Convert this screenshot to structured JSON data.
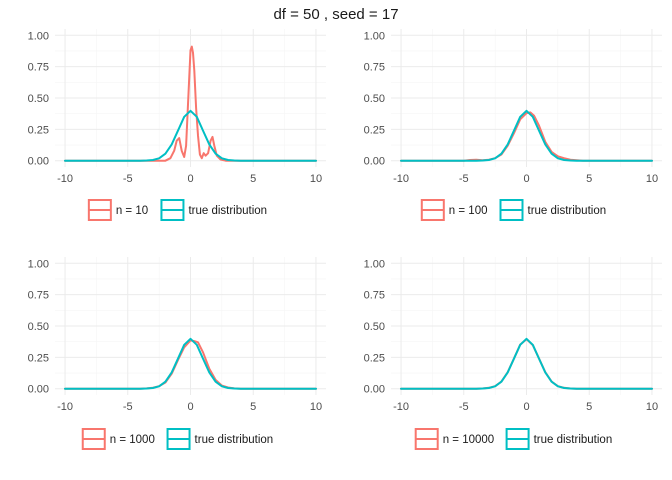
{
  "title": "df = 50 , seed = 17",
  "colors": {
    "sample": "#F8766D",
    "true": "#00BFC4"
  },
  "legend_labels": {
    "true": "true distribution",
    "p1": "n = 10",
    "p2": "n = 100",
    "p3": "n = 1000",
    "p4": "n = 10000"
  },
  "chart_data": [
    {
      "type": "line",
      "xlim": [
        -10.8,
        10.8
      ],
      "ylim": [
        -0.05,
        1.05
      ],
      "x_ticks": [
        -10,
        -5,
        0,
        5,
        10
      ],
      "y_ticks": [
        0.0,
        0.25,
        0.5,
        0.75,
        1.0
      ],
      "x_tick_labels": [
        "-10",
        "-5",
        "0",
        "5",
        "10"
      ],
      "y_tick_labels": [
        "0.00",
        "0.25",
        "0.50",
        "0.75",
        "1.00"
      ],
      "grid": true,
      "legend_position": "bottom",
      "series": [
        {
          "name": "n = 10",
          "x": [
            -10,
            -2,
            -1.6,
            -1.3,
            -1.1,
            -0.9,
            -0.7,
            -0.5,
            -0.35,
            -0.2,
            0,
            0.1,
            0.2,
            0.3,
            0.45,
            0.6,
            0.75,
            0.9,
            1.05,
            1.2,
            1.4,
            1.6,
            1.75,
            1.9,
            2.1,
            2.4,
            2.8,
            10
          ],
          "y": [
            0,
            0,
            0.02,
            0.08,
            0.16,
            0.18,
            0.08,
            0.03,
            0.12,
            0.45,
            0.88,
            0.91,
            0.86,
            0.72,
            0.42,
            0.2,
            0.05,
            0.02,
            0.06,
            0.04,
            0.06,
            0.16,
            0.19,
            0.12,
            0.04,
            0.01,
            0,
            0
          ]
        },
        {
          "name": "true distribution",
          "x": [
            -10,
            -4,
            -3.5,
            -3,
            -2.5,
            -2,
            -1.5,
            -1,
            -0.5,
            0,
            0.5,
            1,
            1.5,
            2,
            2.5,
            3,
            3.5,
            4,
            10
          ],
          "y": [
            0,
            0,
            0.002,
            0.006,
            0.019,
            0.056,
            0.13,
            0.24,
            0.35,
            0.398,
            0.35,
            0.24,
            0.13,
            0.056,
            0.019,
            0.006,
            0.002,
            0,
            0
          ]
        }
      ]
    },
    {
      "type": "line",
      "xlim": [
        -10.8,
        10.8
      ],
      "ylim": [
        -0.05,
        1.05
      ],
      "x_ticks": [
        -10,
        -5,
        0,
        5,
        10
      ],
      "y_ticks": [
        0.0,
        0.25,
        0.5,
        0.75,
        1.0
      ],
      "x_tick_labels": [
        "-10",
        "-5",
        "0",
        "5",
        "10"
      ],
      "y_tick_labels": [
        "0.00",
        "0.25",
        "0.50",
        "0.75",
        "1.00"
      ],
      "grid": true,
      "legend_position": "bottom",
      "series": [
        {
          "name": "n = 100",
          "x": [
            -10,
            -5,
            -4.5,
            -4,
            -3.5,
            -3,
            -2.5,
            -2,
            -1.5,
            -1,
            -0.5,
            0,
            0.3,
            0.6,
            1,
            1.5,
            2,
            2.5,
            3,
            3.5,
            4,
            4.5,
            10
          ],
          "y": [
            0,
            0,
            0.006,
            0.008,
            0.004,
            0.008,
            0.02,
            0.05,
            0.12,
            0.22,
            0.33,
            0.38,
            0.385,
            0.36,
            0.28,
            0.15,
            0.07,
            0.035,
            0.02,
            0.008,
            0.004,
            0,
            0
          ]
        },
        {
          "name": "true distribution",
          "x": [
            -10,
            -4,
            -3.5,
            -3,
            -2.5,
            -2,
            -1.5,
            -1,
            -0.5,
            0,
            0.5,
            1,
            1.5,
            2,
            2.5,
            3,
            3.5,
            4,
            10
          ],
          "y": [
            0,
            0,
            0.002,
            0.006,
            0.019,
            0.056,
            0.13,
            0.24,
            0.35,
            0.398,
            0.35,
            0.24,
            0.13,
            0.056,
            0.019,
            0.006,
            0.002,
            0,
            0
          ]
        }
      ]
    },
    {
      "type": "line",
      "xlim": [
        -10.8,
        10.8
      ],
      "ylim": [
        -0.05,
        1.05
      ],
      "x_ticks": [
        -10,
        -5,
        0,
        5,
        10
      ],
      "y_ticks": [
        0.0,
        0.25,
        0.5,
        0.75,
        1.0
      ],
      "x_tick_labels": [
        "-10",
        "-5",
        "0",
        "5",
        "10"
      ],
      "y_tick_labels": [
        "0.00",
        "0.25",
        "0.50",
        "0.75",
        "1.00"
      ],
      "grid": true,
      "legend_position": "bottom",
      "series": [
        {
          "name": "n = 1000",
          "x": [
            -10,
            -4,
            -3.5,
            -3,
            -2.5,
            -2,
            -1.5,
            -1,
            -0.5,
            0,
            0.3,
            0.6,
            1,
            1.5,
            2,
            2.5,
            3,
            3.5,
            4,
            10
          ],
          "y": [
            0,
            0,
            0.003,
            0.008,
            0.02,
            0.05,
            0.12,
            0.23,
            0.33,
            0.385,
            0.38,
            0.37,
            0.29,
            0.16,
            0.07,
            0.025,
            0.01,
            0.003,
            0,
            0
          ]
        },
        {
          "name": "true distribution",
          "x": [
            -10,
            -4,
            -3.5,
            -3,
            -2.5,
            -2,
            -1.5,
            -1,
            -0.5,
            0,
            0.5,
            1,
            1.5,
            2,
            2.5,
            3,
            3.5,
            4,
            10
          ],
          "y": [
            0,
            0,
            0.002,
            0.006,
            0.019,
            0.056,
            0.13,
            0.24,
            0.35,
            0.398,
            0.35,
            0.24,
            0.13,
            0.056,
            0.019,
            0.006,
            0.002,
            0,
            0
          ]
        }
      ]
    },
    {
      "type": "line",
      "xlim": [
        -10.8,
        10.8
      ],
      "ylim": [
        -0.05,
        1.05
      ],
      "x_ticks": [
        -10,
        -5,
        0,
        5,
        10
      ],
      "y_ticks": [
        0.0,
        0.25,
        0.5,
        0.75,
        1.0
      ],
      "x_tick_labels": [
        "-10",
        "-5",
        "0",
        "5",
        "10"
      ],
      "y_tick_labels": [
        "0.00",
        "0.25",
        "0.50",
        "0.75",
        "1.00"
      ],
      "grid": true,
      "legend_position": "bottom",
      "series": [
        {
          "name": "n = 10000",
          "x": [
            -10,
            -4,
            -3.5,
            -3,
            -2.5,
            -2,
            -1.5,
            -1,
            -0.5,
            0,
            0.5,
            1,
            1.5,
            2,
            2.5,
            3,
            3.5,
            4,
            10
          ],
          "y": [
            0,
            0,
            0.002,
            0.007,
            0.02,
            0.057,
            0.132,
            0.242,
            0.352,
            0.395,
            0.348,
            0.242,
            0.132,
            0.057,
            0.02,
            0.007,
            0.002,
            0,
            0
          ]
        },
        {
          "name": "true distribution",
          "x": [
            -10,
            -4,
            -3.5,
            -3,
            -2.5,
            -2,
            -1.5,
            -1,
            -0.5,
            0,
            0.5,
            1,
            1.5,
            2,
            2.5,
            3,
            3.5,
            4,
            10
          ],
          "y": [
            0,
            0,
            0.002,
            0.006,
            0.019,
            0.056,
            0.13,
            0.24,
            0.35,
            0.398,
            0.35,
            0.24,
            0.13,
            0.056,
            0.019,
            0.006,
            0.002,
            0,
            0
          ]
        }
      ]
    }
  ]
}
